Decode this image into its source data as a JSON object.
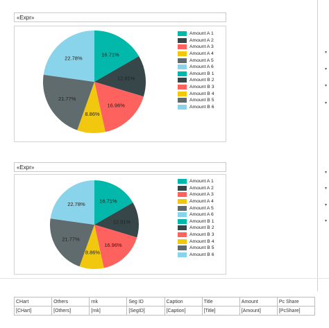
{
  "report": {
    "expr_placeholder": "«Expr»",
    "charts": [
      {
        "id": "chart-1"
      },
      {
        "id": "chart-2"
      }
    ]
  },
  "chart_data": [
    {
      "type": "pie",
      "categories": [
        "Amount A 1",
        "Amount A 2",
        "Amount A 3",
        "Amount A 4",
        "Amount A 5",
        "Amount A 6",
        "Amount B 1",
        "Amount B 2",
        "Amount B 3",
        "Amount B 4",
        "Amount B 5",
        "Amount B 6"
      ],
      "slices": [
        {
          "value": 16.71,
          "label": "16.71%",
          "color": "#01B8AA"
        },
        {
          "value": 12.91,
          "label": "12.91%",
          "color": "#374649"
        },
        {
          "value": 16.96,
          "label": "16.96%",
          "color": "#FD625E"
        },
        {
          "value": 8.86,
          "label": "8.86%",
          "color": "#F2C80F"
        },
        {
          "value": 21.77,
          "label": "21.77%",
          "color": "#5F6B6D"
        },
        {
          "value": 22.78,
          "label": "22.78%",
          "color": "#8AD4EB"
        }
      ],
      "legend_colors": [
        "#01B8AA",
        "#374649",
        "#FD625E",
        "#F2C80F",
        "#5F6B6D",
        "#8AD4EB",
        "#01B8AA",
        "#374649",
        "#FD625E",
        "#F2C80F",
        "#5F6B6D",
        "#8AD4EB"
      ],
      "legend_position": "right"
    },
    {
      "type": "pie",
      "categories": [
        "Amount A 1",
        "Amount A 2",
        "Amount A 3",
        "Amount A 4",
        "Amount A 5",
        "Amount A 6",
        "Amount B 1",
        "Amount B 2",
        "Amount B 3",
        "Amount B 4",
        "Amount B 5",
        "Amount B 6"
      ],
      "slices": [
        {
          "value": 16.71,
          "label": "16.71%",
          "color": "#01B8AA"
        },
        {
          "value": 12.91,
          "label": "12.91%",
          "color": "#374649"
        },
        {
          "value": 16.96,
          "label": "16.96%",
          "color": "#FD625E"
        },
        {
          "value": 8.86,
          "label": "8.86%",
          "color": "#F2C80F"
        },
        {
          "value": 21.77,
          "label": "21.77%",
          "color": "#5F6B6D"
        },
        {
          "value": 22.78,
          "label": "22.78%",
          "color": "#8AD4EB"
        }
      ],
      "legend_colors": [
        "#01B8AA",
        "#374649",
        "#FD625E",
        "#F2C80F",
        "#5F6B6D",
        "#8AD4EB",
        "#01B8AA",
        "#374649",
        "#FD625E",
        "#F2C80F",
        "#5F6B6D",
        "#8AD4EB"
      ],
      "legend_position": "right"
    }
  ],
  "table": {
    "headers": [
      "CHart",
      "Others",
      "rnk",
      "Seg ID",
      "Caption",
      "Title",
      "Amount",
      "Pc Share"
    ],
    "row": [
      "[CHart]",
      "[Others]",
      "[rnk]",
      "[SegID]",
      "[Caption]",
      "[Title]",
      "[Amount]",
      "[PcShare]"
    ]
  }
}
